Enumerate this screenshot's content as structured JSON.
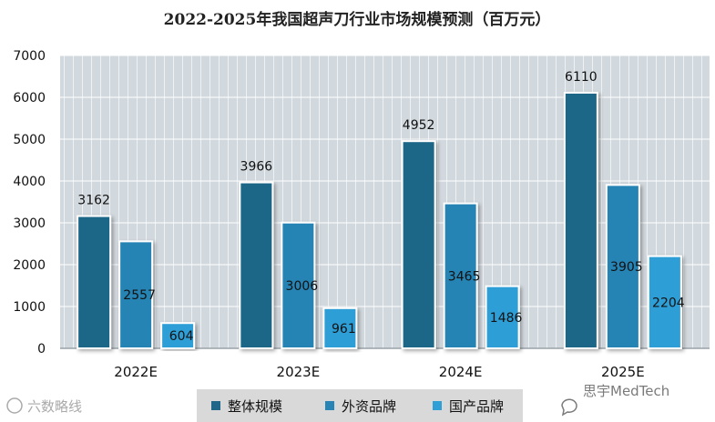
{
  "chart_data": {
    "type": "bar",
    "title": "2022-2025年我国超声刀行业市场规模预测（百万元）",
    "categories": [
      "2022E",
      "2023E",
      "2024E",
      "2025E"
    ],
    "series": [
      {
        "name": "整体规模",
        "values": [
          3162,
          3966,
          4952,
          6110
        ],
        "color": "#1f6688"
      },
      {
        "name": "外资品牌",
        "values": [
          2557,
          3006,
          3465,
          3905
        ],
        "color": "#2784b5"
      },
      {
        "name": "国产品牌",
        "values": [
          604,
          961,
          1486,
          2204
        ],
        "color": "#2f9fd6"
      }
    ],
    "y_ticks": [
      "0",
      "1000",
      "2000",
      "3000",
      "4000",
      "5000",
      "6000",
      "7000"
    ],
    "ylim": [
      0,
      7000
    ],
    "xlabel": "",
    "ylabel": "",
    "grid": true,
    "legend_position": "bottom"
  },
  "watermarks": {
    "left": "六数略线",
    "right": "思宇MedTech"
  }
}
